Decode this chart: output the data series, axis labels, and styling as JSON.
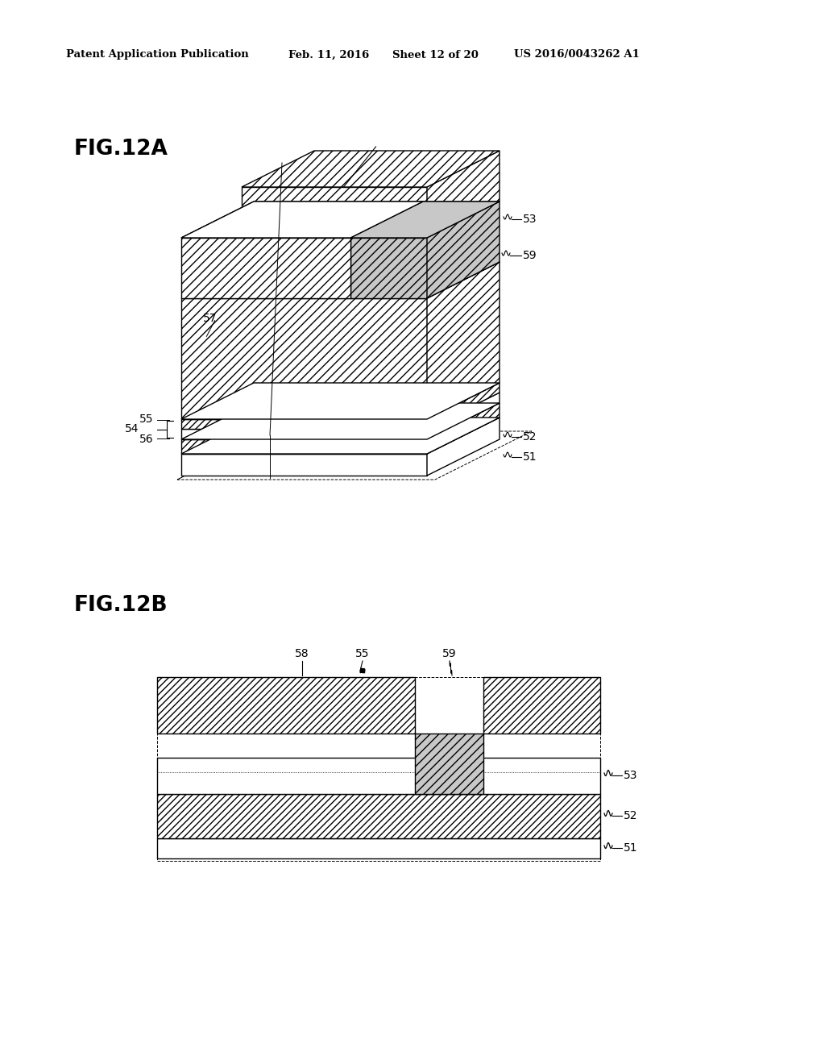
{
  "bg_color": "#ffffff",
  "header_text": "Patent Application Publication",
  "header_date": "Feb. 11, 2016",
  "header_sheet": "Sheet 12 of 20",
  "header_patent": "US 2016/0043262 A1",
  "fig12a_label": "FIG.12A",
  "fig12b_label": "FIG.12B",
  "line_color": "#000000",
  "hatch_dense": "////",
  "hatch_normal": "///",
  "fill_white": "#ffffff",
  "fill_gray": "#c8c8c8"
}
